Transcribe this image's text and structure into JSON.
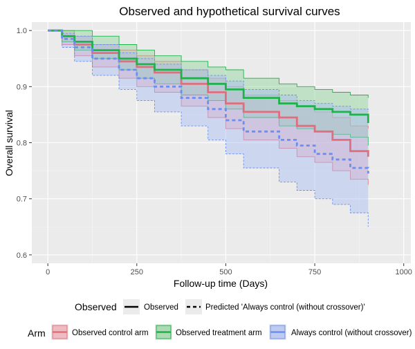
{
  "chart_data": {
    "type": "line",
    "title": "Observed and hypothetical survival curves",
    "xlabel": "Follow-up time (Days)",
    "ylabel": "Overall survival",
    "xlim": [
      -45,
      1020
    ],
    "ylim": [
      0.585,
      1.015
    ],
    "xticks": [
      0,
      250,
      500,
      750,
      1000
    ],
    "xtick_labels": [
      "0",
      "250",
      "500",
      "750",
      "1000"
    ],
    "yticks": [
      0.6,
      0.7,
      0.8,
      0.9,
      1.0
    ],
    "ytick_labels": [
      "0.6",
      "0.7",
      "0.8",
      "0.9",
      "1.0"
    ],
    "grid": true,
    "series": [
      {
        "name": "Observed control arm",
        "linetype": "solid",
        "color": "#e06f7d",
        "fill": "#f2a6ae",
        "x": [
          0,
          40,
          75,
          125,
          200,
          250,
          300,
          375,
          450,
          500,
          550,
          650,
          700,
          750,
          800,
          850,
          900
        ],
        "values": [
          1.0,
          0.99,
          0.975,
          0.96,
          0.945,
          0.935,
          0.925,
          0.905,
          0.89,
          0.87,
          0.855,
          0.845,
          0.83,
          0.82,
          0.805,
          0.785,
          0.775
        ],
        "upper": [
          1.0,
          1.0,
          0.99,
          0.975,
          0.965,
          0.955,
          0.945,
          0.93,
          0.915,
          0.9,
          0.885,
          0.875,
          0.865,
          0.855,
          0.845,
          0.83,
          0.825
        ],
        "lower": [
          1.0,
          0.975,
          0.955,
          0.935,
          0.915,
          0.9,
          0.89,
          0.865,
          0.845,
          0.825,
          0.805,
          0.79,
          0.775,
          0.765,
          0.75,
          0.735,
          0.725
        ]
      },
      {
        "name": "Observed treatment arm",
        "linetype": "solid",
        "color": "#1fb24a",
        "fill": "#8fd49a",
        "x": [
          0,
          40,
          75,
          125,
          200,
          250,
          300,
          375,
          450,
          500,
          550,
          650,
          700,
          750,
          800,
          850,
          900
        ],
        "values": [
          1.0,
          0.99,
          0.98,
          0.965,
          0.95,
          0.94,
          0.93,
          0.915,
          0.905,
          0.895,
          0.88,
          0.87,
          0.865,
          0.86,
          0.855,
          0.85,
          0.835
        ],
        "upper": [
          1.0,
          1.0,
          1.0,
          0.99,
          0.975,
          0.965,
          0.955,
          0.945,
          0.935,
          0.93,
          0.915,
          0.905,
          0.9,
          0.895,
          0.89,
          0.885,
          0.88
        ],
        "lower": [
          1.0,
          0.98,
          0.965,
          0.95,
          0.93,
          0.915,
          0.905,
          0.885,
          0.875,
          0.86,
          0.845,
          0.83,
          0.825,
          0.82,
          0.815,
          0.81,
          0.795
        ]
      },
      {
        "name": "Always control (without crossover)",
        "linetype": "dashed",
        "observed_legend": "Predicted 'Always control (without crossover)'",
        "color": "#6b8ff0",
        "fill": "#a9bdf5",
        "x": [
          0,
          40,
          75,
          125,
          200,
          250,
          300,
          375,
          450,
          500,
          550,
          650,
          700,
          750,
          800,
          850,
          900
        ],
        "values": [
          1.0,
          0.985,
          0.97,
          0.95,
          0.93,
          0.915,
          0.9,
          0.88,
          0.86,
          0.84,
          0.82,
          0.805,
          0.795,
          0.78,
          0.77,
          0.755,
          0.745
        ],
        "upper": [
          1.0,
          0.995,
          0.99,
          0.975,
          0.96,
          0.95,
          0.94,
          0.93,
          0.92,
          0.91,
          0.895,
          0.885,
          0.875,
          0.87,
          0.865,
          0.86,
          0.855
        ],
        "lower": [
          1.0,
          0.97,
          0.945,
          0.92,
          0.895,
          0.875,
          0.855,
          0.83,
          0.805,
          0.78,
          0.755,
          0.73,
          0.715,
          0.7,
          0.69,
          0.675,
          0.65
        ]
      }
    ],
    "legend_observed": {
      "title": "Observed",
      "items": [
        "Observed",
        "Predicted 'Always control (without crossover)'"
      ]
    },
    "legend_arm": {
      "title": "Arm",
      "items": [
        "Observed control arm",
        "Observed treatment arm",
        "Always control (without crossover)"
      ]
    }
  }
}
